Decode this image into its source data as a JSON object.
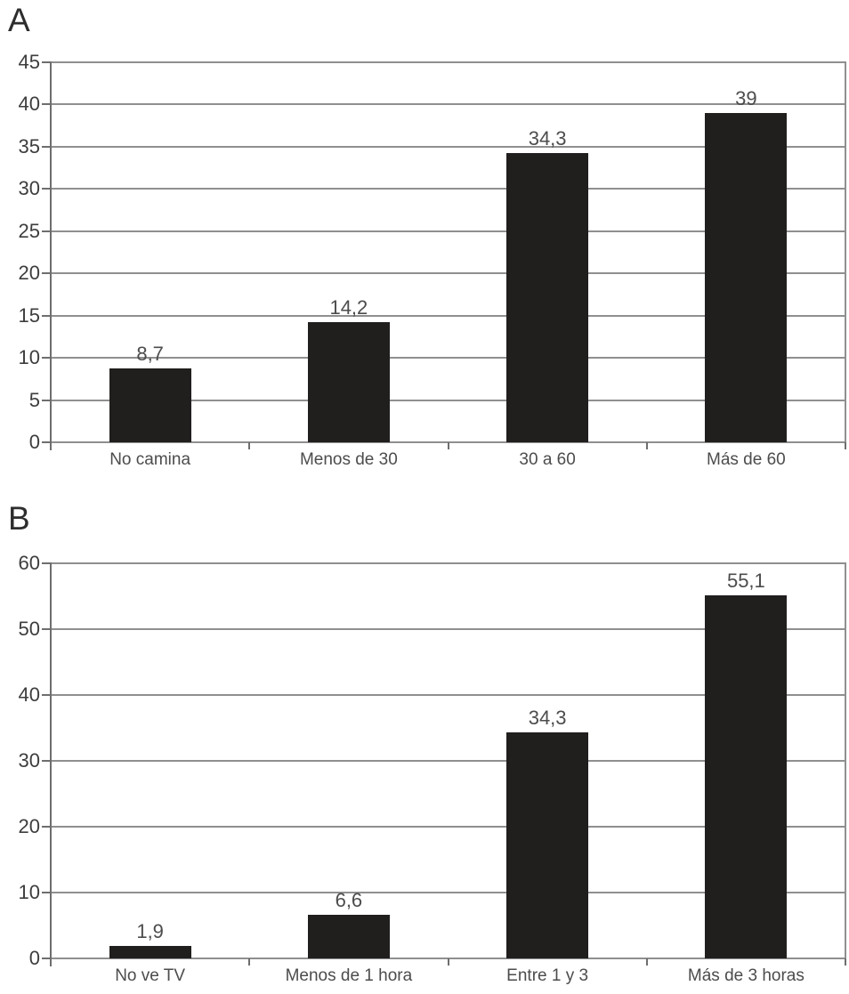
{
  "figure": {
    "background": "#ffffff"
  },
  "chart_data": [
    {
      "type": "bar",
      "panel_label": "A",
      "categories": [
        "No camina",
        "Menos de 30",
        "30 a 60",
        "Más de 60"
      ],
      "values": [
        8.7,
        14.2,
        34.3,
        39
      ],
      "value_labels": [
        "8,7",
        "14,2",
        "34,3",
        "39"
      ],
      "ylim": [
        0,
        45
      ],
      "yticks": [
        0,
        5,
        10,
        15,
        20,
        25,
        30,
        35,
        40,
        45
      ],
      "grid": true,
      "legend_position": "none",
      "bar_color": "#211e1e",
      "grid_color": "#8f8f8f",
      "axis_color": "#6e6e6e",
      "label_color": "#4c4c4c"
    },
    {
      "type": "bar",
      "panel_label": "B",
      "categories": [
        "No ve TV",
        "Menos de 1 hora",
        "Entre 1 y 3",
        "Más de 3 horas"
      ],
      "values": [
        1.9,
        6.6,
        34.3,
        55.1
      ],
      "value_labels": [
        "1,9",
        "6,6",
        "34,3",
        "55,1"
      ],
      "ylim": [
        0,
        60
      ],
      "yticks": [
        0,
        10,
        20,
        30,
        40,
        50,
        60
      ],
      "grid": true,
      "legend_position": "none",
      "bar_color": "#211e1e",
      "grid_color": "#8f8f8f",
      "axis_color": "#6e6e6e",
      "label_color": "#4c4c4c"
    }
  ]
}
